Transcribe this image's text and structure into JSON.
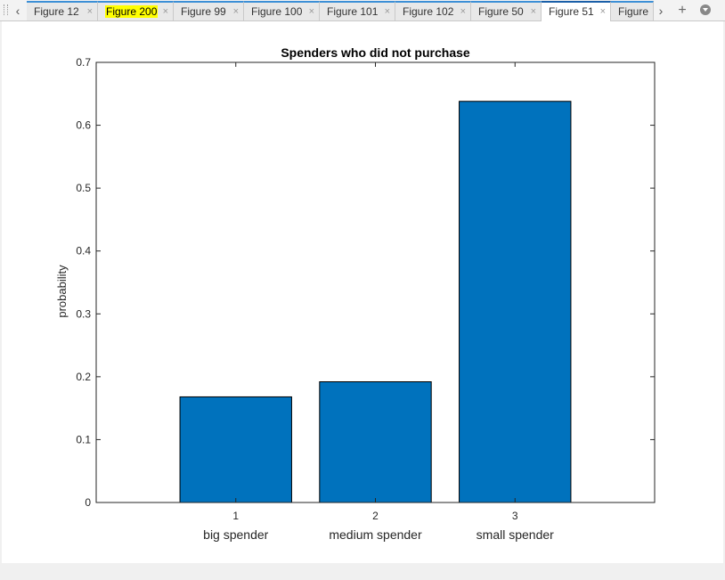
{
  "tabs": [
    {
      "label": "Figure 12",
      "highlighted": false,
      "active": false
    },
    {
      "label": "Figure 200",
      "highlighted": true,
      "active": false
    },
    {
      "label": "Figure 99",
      "highlighted": false,
      "active": false
    },
    {
      "label": "Figure 100",
      "highlighted": false,
      "active": false
    },
    {
      "label": "Figure 101",
      "highlighted": false,
      "active": false
    },
    {
      "label": "Figure 102",
      "highlighted": false,
      "active": false
    },
    {
      "label": "Figure 50",
      "highlighted": false,
      "active": false
    },
    {
      "label": "Figure 51",
      "highlighted": false,
      "active": true
    },
    {
      "label": "Figure",
      "highlighted": false,
      "active": false
    }
  ],
  "icons": {
    "prev": "chevron-left-icon",
    "next": "chevron-right-icon",
    "add": "plus-icon",
    "menu": "dropdown-circle-icon",
    "close": "close-icon"
  },
  "chart_data": {
    "type": "bar",
    "title": "Spenders who did not purchase",
    "ylabel": "probability",
    "xlabel": "",
    "x": [
      1,
      2,
      3
    ],
    "x_tick_labels": [
      "1",
      "2",
      "3"
    ],
    "categories": [
      "big spender",
      "medium spender",
      "small spender"
    ],
    "values": [
      0.168,
      0.192,
      0.638
    ],
    "xlim": [
      0,
      4
    ],
    "ylim": [
      0,
      0.7
    ],
    "yticks": [
      0,
      0.1,
      0.2,
      0.3,
      0.4,
      0.5,
      0.6,
      0.7
    ],
    "ytick_labels": [
      "0",
      "0.1",
      "0.2",
      "0.3",
      "0.4",
      "0.5",
      "0.6",
      "0.7"
    ],
    "bar_color": "#0072BD",
    "grid": false,
    "legend": "none"
  }
}
